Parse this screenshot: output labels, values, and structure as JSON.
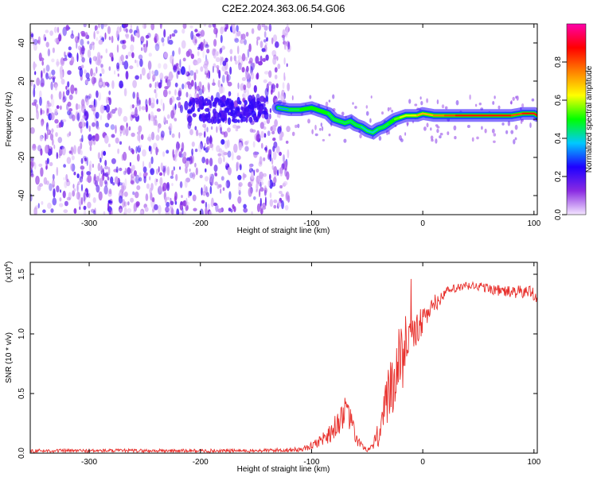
{
  "page_title": "C2E2.2024.363.06.54.G06",
  "chart_data": [
    {
      "type": "heatmap",
      "xlabel": "Height of straight line (km)",
      "ylabel": "Frequency (Hz)",
      "xlim": [
        -353,
        103
      ],
      "ylim": [
        -50,
        50
      ],
      "x_ticks": [
        -300,
        -200,
        -100,
        0,
        100
      ],
      "x_tick_labels": [
        "-300",
        "-200",
        "-100",
        "0",
        "100"
      ],
      "y_ticks": [
        -40,
        -20,
        0,
        20,
        40
      ],
      "y_tick_labels": [
        "-40",
        "-20",
        "0",
        "20",
        "40"
      ],
      "colorbar": {
        "label": "Normalized spectral amplitude",
        "range": [
          0,
          1
        ],
        "ticks": [
          0.0,
          0.2,
          0.4,
          0.6,
          0.8
        ],
        "tick_labels": [
          "0.0",
          "0.2",
          "0.4",
          "0.6",
          "0.8"
        ],
        "colors": [
          "#f4e6ff",
          "#8a2be2",
          "#1e00ff",
          "#00c8ff",
          "#00ff00",
          "#ffff00",
          "#ff8000",
          "#ff0000",
          "#ff00aa"
        ]
      },
      "noise_region_x": [
        -353,
        -120
      ],
      "ridge": {
        "x": [
          -130,
          -120,
          -110,
          -100,
          -95,
          -90,
          -85,
          -80,
          -75,
          -70,
          -65,
          -60,
          -55,
          -50,
          -45,
          -40,
          -35,
          -30,
          -25,
          -20,
          -15,
          -10,
          -5,
          0,
          10,
          20,
          30,
          40,
          50,
          60,
          70,
          80,
          90,
          100,
          103
        ],
        "y": [
          6,
          5,
          5,
          6,
          5,
          4,
          3,
          0,
          -1,
          -2,
          -1,
          -3,
          -4,
          -6,
          -7,
          -5,
          -4,
          -2,
          0,
          1,
          2,
          2,
          2,
          3,
          2,
          2,
          2,
          2,
          2,
          2,
          2,
          2,
          3,
          3,
          2
        ],
        "amplitude": [
          0.35,
          0.45,
          0.5,
          0.5,
          0.5,
          0.5,
          0.45,
          0.45,
          0.45,
          0.45,
          0.45,
          0.45,
          0.4,
          0.4,
          0.4,
          0.45,
          0.45,
          0.5,
          0.55,
          0.6,
          0.6,
          0.65,
          0.7,
          0.7,
          0.75,
          0.8,
          0.85,
          0.85,
          0.85,
          0.85,
          0.85,
          0.8,
          0.85,
          0.85,
          0.85
        ]
      },
      "pre_region_band": {
        "x": [
          -210,
          -140
        ],
        "y_center": 5
      }
    },
    {
      "type": "line",
      "xlabel": "Height of straight line (km)",
      "ylabel": "SNR (10 * v/v)",
      "y_multiplier": "(x10",
      "y_multiplier_exp": "4",
      "xlim": [
        -353,
        103
      ],
      "ylim": [
        0,
        1.6
      ],
      "x_ticks": [
        -300,
        -200,
        -100,
        0,
        100
      ],
      "x_tick_labels": [
        "-300",
        "-200",
        "-100",
        "0",
        "100"
      ],
      "y_ticks": [
        0,
        0.5,
        1.0,
        1.5
      ],
      "y_tick_labels": [
        "0.0",
        "0.5",
        "1.0",
        "1.5"
      ],
      "line_color": "#e8312d",
      "series": [
        {
          "x": [
            -353,
            -250,
            -150,
            -110,
            -100,
            -90,
            -80,
            -75,
            -70,
            -65,
            -60,
            -55,
            -50,
            -45,
            -40,
            -35,
            -30,
            -25,
            -20,
            -15,
            -10,
            -5,
            0,
            5,
            10,
            15,
            20,
            30,
            40,
            50,
            60,
            70,
            80,
            90,
            100,
            103
          ],
          "y": [
            0.02,
            0.02,
            0.02,
            0.03,
            0.06,
            0.12,
            0.2,
            0.28,
            0.35,
            0.28,
            0.12,
            0.06,
            0.03,
            0.04,
            0.15,
            0.3,
            0.5,
            0.7,
            0.78,
            0.88,
            1.0,
            1.05,
            1.1,
            1.18,
            1.22,
            1.28,
            1.35,
            1.38,
            1.4,
            1.4,
            1.38,
            1.36,
            1.35,
            1.35,
            1.35,
            1.3
          ],
          "spread": [
            0.015,
            0.015,
            0.015,
            0.02,
            0.03,
            0.06,
            0.1,
            0.12,
            0.12,
            0.1,
            0.06,
            0.03,
            0.02,
            0.04,
            0.12,
            0.2,
            0.3,
            0.3,
            0.3,
            0.25,
            0.2,
            0.15,
            0.12,
            0.08,
            0.06,
            0.05,
            0.04,
            0.04,
            0.04,
            0.04,
            0.04,
            0.05,
            0.05,
            0.06,
            0.07,
            0.05
          ]
        }
      ]
    }
  ]
}
